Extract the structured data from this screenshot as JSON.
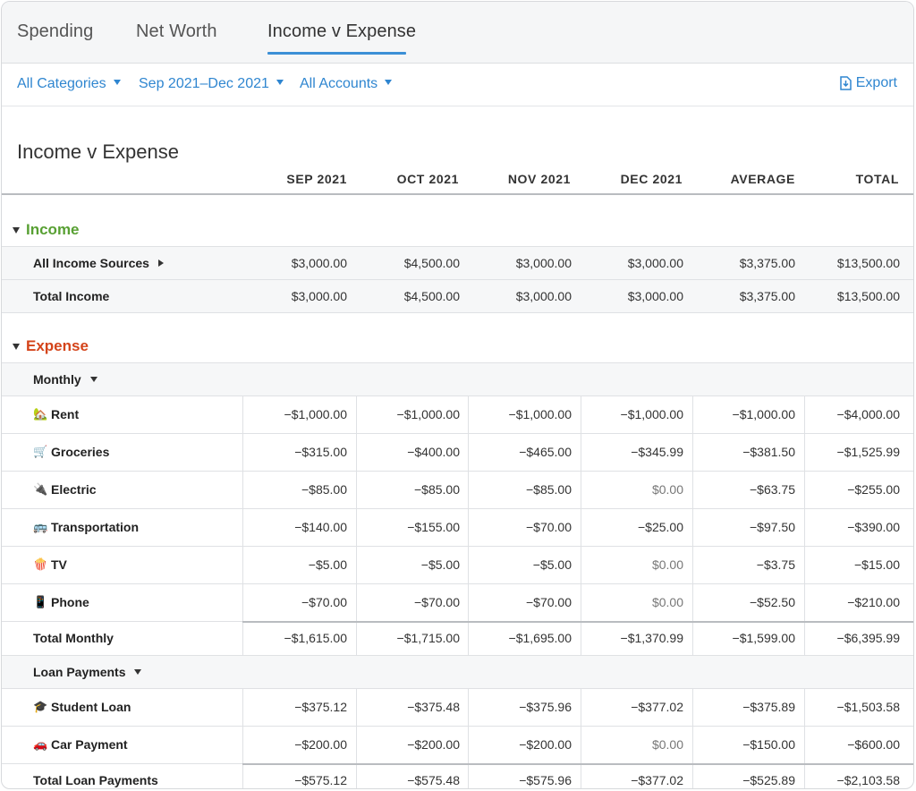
{
  "tabs": [
    {
      "label": "Spending"
    },
    {
      "label": "Net Worth"
    },
    {
      "label": "Income v Expense"
    }
  ],
  "filters": {
    "categories": "All Categories",
    "date_range": "Sep 2021–Dec 2021",
    "accounts": "All Accounts",
    "export_label": "Export"
  },
  "report": {
    "title": "Income v Expense",
    "columns": [
      "SEP 2021",
      "OCT 2021",
      "NOV 2021",
      "DEC 2021",
      "AVERAGE",
      "TOTAL"
    ]
  },
  "income": {
    "title": "Income",
    "rows": [
      {
        "label": "All Income Sources",
        "values": [
          "$3,000.00",
          "$4,500.00",
          "$3,000.00",
          "$3,000.00",
          "$3,375.00",
          "$13,500.00"
        ]
      },
      {
        "label": "Total Income",
        "values": [
          "$3,000.00",
          "$4,500.00",
          "$3,000.00",
          "$3,000.00",
          "$3,375.00",
          "$13,500.00"
        ]
      }
    ]
  },
  "expense": {
    "title": "Expense",
    "monthly": {
      "label": "Monthly",
      "rows": [
        {
          "icon": "house-icon",
          "emoji": "🏡",
          "label": "Rent",
          "values": [
            "−$1,000.00",
            "−$1,000.00",
            "−$1,000.00",
            "−$1,000.00",
            "−$1,000.00",
            "−$4,000.00"
          ]
        },
        {
          "icon": "shopping-cart-icon",
          "emoji": "🛒",
          "label": "Groceries",
          "values": [
            "−$315.00",
            "−$400.00",
            "−$465.00",
            "−$345.99",
            "−$381.50",
            "−$1,525.99"
          ]
        },
        {
          "icon": "electric-plug-icon",
          "emoji": "🔌",
          "label": "Electric",
          "values": [
            "−$85.00",
            "−$85.00",
            "−$85.00",
            "$0.00",
            "−$63.75",
            "−$255.00"
          ]
        },
        {
          "icon": "bus-icon",
          "emoji": "🚌",
          "label": "Transportation",
          "values": [
            "−$140.00",
            "−$155.00",
            "−$70.00",
            "−$25.00",
            "−$97.50",
            "−$390.00"
          ]
        },
        {
          "icon": "popcorn-icon",
          "emoji": "🍿",
          "label": "TV",
          "values": [
            "−$5.00",
            "−$5.00",
            "−$5.00",
            "$0.00",
            "−$3.75",
            "−$15.00"
          ]
        },
        {
          "icon": "phone-icon",
          "emoji": "📱",
          "label": "Phone",
          "values": [
            "−$70.00",
            "−$70.00",
            "−$70.00",
            "$0.00",
            "−$52.50",
            "−$210.00"
          ]
        }
      ],
      "total": {
        "label": "Total Monthly",
        "values": [
          "−$1,615.00",
          "−$1,715.00",
          "−$1,695.00",
          "−$1,370.99",
          "−$1,599.00",
          "−$6,395.99"
        ]
      }
    },
    "loans": {
      "label": "Loan Payments",
      "rows": [
        {
          "icon": "graduation-cap-icon",
          "emoji": "🎓",
          "label": "Student Loan",
          "values": [
            "−$375.12",
            "−$375.48",
            "−$375.96",
            "−$377.02",
            "−$375.89",
            "−$1,503.58"
          ]
        },
        {
          "icon": "car-icon",
          "emoji": "🚗",
          "label": "Car Payment",
          "values": [
            "−$200.00",
            "−$200.00",
            "−$200.00",
            "$0.00",
            "−$150.00",
            "−$600.00"
          ]
        }
      ],
      "total": {
        "label": "Total Loan Payments",
        "values": [
          "−$575.12",
          "−$575.48",
          "−$575.96",
          "−$377.02",
          "−$525.89",
          "−$2,103.58"
        ]
      }
    }
  }
}
